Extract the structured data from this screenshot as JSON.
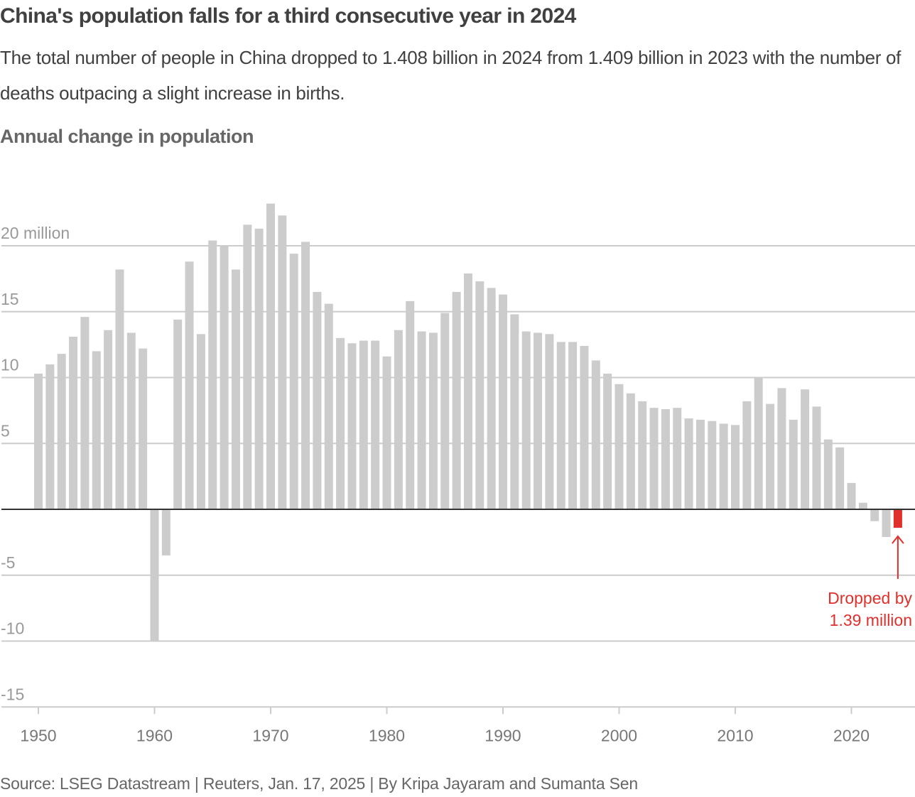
{
  "header": {
    "title": "China's population falls for a third consecutive year in 2024",
    "subtitle": "The total number of people in China dropped to 1.408 billion in 2024 from 1.409 billion in 2023 with the number of deaths outpacing a slight increase in births.",
    "chart_label": "Annual change in population"
  },
  "footer": {
    "source": "Source: LSEG Datastream | Reuters, Jan. 17, 2025 | By Kripa Jayaram and Sumanta Sen"
  },
  "colors": {
    "bar": "#cccccc",
    "highlight": "#e0302b",
    "grid": "#cccccc",
    "zero_line": "#333333",
    "tick_text": "#999999",
    "axis_text": "#777777"
  },
  "chart_data": {
    "type": "bar",
    "title": "Annual change in population",
    "xlabel": "",
    "ylabel": "",
    "unit": "million",
    "ylim": [
      -15,
      23.5
    ],
    "yticks": [
      20,
      15,
      10,
      5,
      -5,
      -10,
      -15
    ],
    "ytick_labels": [
      "20 million",
      "15",
      "10",
      "5",
      "-5",
      "-10",
      "-15"
    ],
    "xticks": [
      1950,
      1960,
      1970,
      1980,
      1990,
      2000,
      2010,
      2020
    ],
    "xtick_labels": [
      "1950",
      "1960",
      "1970",
      "1980",
      "1990",
      "2000",
      "2010",
      "2020"
    ],
    "grid": true,
    "highlight_year": 2024,
    "annotation": {
      "year": 2024,
      "line1": "Dropped by",
      "line2": "1.39 million"
    },
    "categories": [
      1950,
      1951,
      1952,
      1953,
      1954,
      1955,
      1956,
      1957,
      1958,
      1959,
      1960,
      1961,
      1962,
      1963,
      1964,
      1965,
      1966,
      1967,
      1968,
      1969,
      1970,
      1971,
      1972,
      1973,
      1974,
      1975,
      1976,
      1977,
      1978,
      1979,
      1980,
      1981,
      1982,
      1983,
      1984,
      1985,
      1986,
      1987,
      1988,
      1989,
      1990,
      1991,
      1992,
      1993,
      1994,
      1995,
      1996,
      1997,
      1998,
      1999,
      2000,
      2001,
      2002,
      2003,
      2004,
      2005,
      2006,
      2007,
      2008,
      2009,
      2010,
      2011,
      2012,
      2013,
      2014,
      2015,
      2016,
      2017,
      2018,
      2019,
      2020,
      2021,
      2022,
      2023,
      2024
    ],
    "values": [
      10.3,
      11.0,
      11.8,
      13.1,
      14.6,
      12.0,
      13.6,
      18.2,
      13.4,
      12.2,
      -10.0,
      -3.5,
      14.4,
      18.8,
      13.3,
      20.4,
      20.0,
      18.2,
      21.6,
      21.3,
      23.2,
      22.3,
      19.4,
      20.3,
      16.5,
      15.6,
      13.0,
      12.6,
      12.8,
      12.8,
      11.6,
      13.6,
      15.8,
      13.5,
      13.4,
      14.9,
      16.5,
      17.9,
      17.3,
      16.8,
      16.3,
      14.8,
      13.5,
      13.4,
      13.3,
      12.7,
      12.7,
      12.4,
      11.3,
      10.3,
      9.5,
      8.8,
      8.2,
      7.7,
      7.6,
      7.7,
      6.9,
      6.8,
      6.7,
      6.5,
      6.4,
      8.2,
      10.0,
      8.0,
      9.2,
      6.8,
      9.1,
      7.8,
      5.3,
      4.7,
      2.0,
      0.5,
      -0.9,
      -2.1,
      -1.4
    ]
  }
}
